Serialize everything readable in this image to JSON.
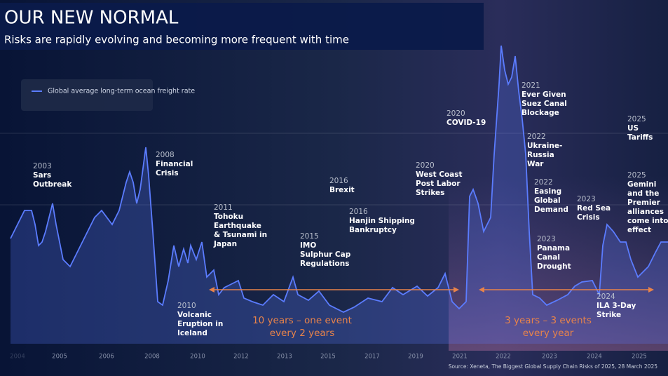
{
  "header": {
    "title": "OUR NEW NORMAL",
    "subtitle": "Risks are rapidly evolving and becoming more frequent with time"
  },
  "chart_data": {
    "type": "line",
    "legend": "Global average long-term ocean freight rate",
    "color": "#5b7cff",
    "xlim": [
      -25,
      928
    ],
    "ylim": [
      0,
      425
    ],
    "xticks": [
      {
        "value": 0,
        "label": "2004"
      },
      {
        "value": 60,
        "label": "2005"
      },
      {
        "value": 127,
        "label": "2006"
      },
      {
        "value": 192,
        "label": "2008"
      },
      {
        "value": 257,
        "label": "2010"
      },
      {
        "value": 319,
        "label": "2012"
      },
      {
        "value": 381,
        "label": "2013"
      },
      {
        "value": 443,
        "label": "2015"
      },
      {
        "value": 506,
        "label": "2017"
      },
      {
        "value": 568,
        "label": "2019"
      },
      {
        "value": 631,
        "label": "2021"
      },
      {
        "value": 693,
        "label": "2022"
      },
      {
        "value": 759,
        "label": "2023"
      },
      {
        "value": 823,
        "label": "2024"
      },
      {
        "value": 887,
        "label": "2025"
      }
    ],
    "x": [
      -10,
      10,
      20,
      25,
      30,
      35,
      40,
      50,
      55,
      65,
      75,
      85,
      95,
      110,
      120,
      135,
      145,
      155,
      160,
      165,
      170,
      175,
      183,
      187,
      193,
      200,
      207,
      215,
      223,
      230,
      237,
      243,
      247,
      255,
      263,
      270,
      280,
      287,
      295,
      305,
      315,
      323,
      335,
      350,
      365,
      380,
      393,
      400,
      415,
      430,
      445,
      465,
      480,
      500,
      520,
      535,
      550,
      570,
      585,
      600,
      610,
      620,
      630,
      640,
      645,
      650,
      657,
      665,
      675,
      680,
      687,
      690,
      695,
      700,
      705,
      710,
      715,
      720,
      725,
      730,
      735,
      745,
      755,
      770,
      785,
      795,
      805,
      820,
      830,
      835,
      841,
      850,
      860,
      868,
      875,
      885,
      900,
      910,
      918,
      928
    ],
    "values": [
      150,
      190,
      190,
      170,
      140,
      145,
      160,
      200,
      170,
      120,
      110,
      130,
      150,
      180,
      190,
      170,
      190,
      230,
      245,
      230,
      200,
      220,
      280,
      240,
      160,
      60,
      55,
      90,
      140,
      110,
      135,
      115,
      140,
      120,
      145,
      95,
      105,
      70,
      80,
      85,
      90,
      65,
      60,
      55,
      70,
      60,
      95,
      70,
      62,
      75,
      55,
      45,
      52,
      65,
      60,
      80,
      70,
      82,
      68,
      80,
      100,
      60,
      50,
      60,
      210,
      220,
      200,
      160,
      180,
      270,
      370,
      425,
      390,
      370,
      380,
      410,
      360,
      320,
      270,
      160,
      70,
      65,
      55,
      62,
      70,
      82,
      88,
      90,
      70,
      140,
      170,
      160,
      145,
      145,
      120,
      95,
      110,
      130,
      145,
      145
    ],
    "annotations": [
      {
        "year": "2003",
        "lines": [
          "Sars",
          "Outbreak"
        ]
      },
      {
        "year": "2008",
        "lines": [
          "Financial",
          "Crisis"
        ]
      },
      {
        "year": "2010",
        "lines": [
          "Volcanic",
          "Eruption in",
          "Iceland"
        ]
      },
      {
        "year": "2011",
        "lines": [
          "Tohoku",
          "Earthquake",
          "& Tsunami in",
          "Japan"
        ]
      },
      {
        "year": "2015",
        "lines": [
          "IMO",
          "Sulphur Cap",
          "Regulations"
        ]
      },
      {
        "year": "2016",
        "lines": [
          "Brexit"
        ]
      },
      {
        "year": "2016",
        "lines": [
          "Hanjin Shipping",
          "Bankruptcy"
        ]
      },
      {
        "year": "2020",
        "lines": [
          "COVID-19"
        ]
      },
      {
        "year": "2020",
        "lines": [
          "West Coast",
          "Post Labor",
          "Strikes"
        ]
      },
      {
        "year": "2021",
        "lines": [
          "Ever Given",
          "Suez Canal",
          "Blockage"
        ]
      },
      {
        "year": "2022",
        "lines": [
          "Ukraine-",
          "Russia",
          "War"
        ]
      },
      {
        "year": "2022",
        "lines": [
          "Easing",
          "Global",
          "Demand"
        ]
      },
      {
        "year": "2023",
        "lines": [
          "Red Sea",
          "Crisis"
        ]
      },
      {
        "year": "2023",
        "lines": [
          "Panama",
          "Canal",
          "Drought"
        ]
      },
      {
        "year": "2024",
        "lines": [
          "ILA 3-Day",
          "Strike"
        ]
      },
      {
        "year": "2025",
        "lines": [
          "US",
          "Tariffs"
        ]
      },
      {
        "year": "2025",
        "lines": [
          "Gemini",
          "and the",
          "Premier",
          "alliances",
          "come into",
          "effect"
        ]
      }
    ],
    "periods": [
      {
        "lines": [
          "10 years – one event",
          "every 2 years"
        ]
      },
      {
        "lines": [
          "3 years – 3 events",
          "every year"
        ]
      }
    ],
    "source": "Source: Xeneta, The Biggest Global Supply Chain Risks of 2025, 28 March 2025"
  }
}
